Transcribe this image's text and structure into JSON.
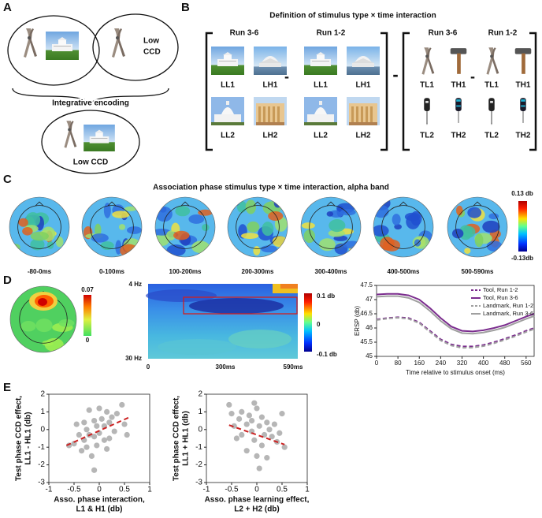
{
  "panel_labels": [
    "A",
    "B",
    "C",
    "D",
    "E"
  ],
  "panel_a": {
    "low_ccd_top": [
      "Low",
      "CCD"
    ],
    "integrative_encoding": "Integrative encoding",
    "low_ccd_bottom": "Low CCD"
  },
  "panel_b": {
    "title": "Definition of stimulus type × time interaction",
    "run_labels": [
      "Run 3-6",
      "Run 1-2",
      "Run 3-6",
      "Run 1-2"
    ],
    "landmark_labels": [
      [
        "LL1",
        "LH1",
        "LL2",
        "LH2"
      ],
      [
        "LL1",
        "LH1",
        "LL2",
        "LH2"
      ]
    ],
    "tool_labels": [
      [
        "TL1",
        "TH1",
        "TL2",
        "TH2"
      ],
      [
        "TL1",
        "TH1",
        "TL2",
        "TH2"
      ]
    ]
  },
  "panel_c": {
    "title": "Association phase stimulus type × time interaction, alpha band",
    "time_windows": [
      "-80-0ms",
      "0-100ms",
      "100-200ms",
      "200-300ms",
      "300-400ms",
      "400-500ms",
      "500-590ms"
    ],
    "colorbar_labels": [
      "0.13 db",
      "-0.13db"
    ]
  },
  "panel_d": {
    "topo_colorbar_labels": [
      "0.07",
      "0"
    ],
    "tf_freq_labels": [
      "4 Hz",
      "30 Hz"
    ],
    "tf_time_labels": [
      "0",
      "300ms",
      "590ms"
    ],
    "tf_colorbar_labels": [
      "0.1 db",
      "0",
      "-0.1 db"
    ],
    "erp_chart": {
      "type": "line",
      "x_label": "Time relative to stimulus onset (ms)",
      "y_label": "ERSP (db)",
      "x": [
        0,
        40,
        80,
        120,
        160,
        200,
        240,
        280,
        320,
        360,
        400,
        440,
        480,
        520,
        560,
        590
      ],
      "xlim": [
        0,
        590
      ],
      "xticks": [
        0,
        80,
        160,
        240,
        320,
        400,
        480,
        560
      ],
      "ylim": [
        45,
        47.5
      ],
      "yticks": [
        45,
        45.5,
        46,
        46.5,
        47,
        47.5
      ],
      "legend": "upper right",
      "series": [
        {
          "name": "Tool, Run 1-2",
          "color": "#7b2d8e",
          "dashed": true,
          "values": [
            46.3,
            46.35,
            46.38,
            46.35,
            46.2,
            45.9,
            45.6,
            45.42,
            45.35,
            45.35,
            45.4,
            45.5,
            45.62,
            45.75,
            45.9,
            46.0
          ]
        },
        {
          "name": "Tool, Run 3-6",
          "color": "#7b2d8e",
          "dashed": false,
          "values": [
            47.18,
            47.2,
            47.2,
            47.15,
            47.0,
            46.7,
            46.35,
            46.05,
            45.9,
            45.88,
            45.92,
            46.0,
            46.1,
            46.25,
            46.4,
            46.5
          ]
        },
        {
          "name": "Landmark, Run 1-2",
          "color": "#a0a0a0",
          "dashed": true,
          "values": [
            46.28,
            46.33,
            46.36,
            46.32,
            46.17,
            45.86,
            45.56,
            45.38,
            45.3,
            45.31,
            45.36,
            45.46,
            45.58,
            45.71,
            45.86,
            45.96
          ]
        },
        {
          "name": "Landmark, Run 3-6",
          "color": "#a0a0a0",
          "dashed": false,
          "values": [
            47.1,
            47.12,
            47.12,
            47.06,
            46.9,
            46.6,
            46.25,
            45.97,
            45.82,
            45.8,
            45.84,
            45.92,
            46.02,
            46.17,
            46.32,
            46.42
          ]
        }
      ]
    }
  },
  "panel_e": {
    "charts": [
      {
        "type": "scatter",
        "x_label": [
          "Asso. phase interaction,",
          "L1 & H1 (db)"
        ],
        "y_label": [
          "Test phase CCD effect,",
          "LL1 - HL1 (db)"
        ],
        "xlim": [
          -1,
          1
        ],
        "xticks": [
          -1,
          -0.5,
          0,
          0.5,
          1
        ],
        "ylim": [
          -3,
          2
        ],
        "yticks": [
          -3,
          -2,
          -1,
          0,
          1,
          2
        ],
        "color": "#a9a9a9",
        "x": [
          -0.6,
          -0.5,
          -0.45,
          -0.4,
          -0.35,
          -0.3,
          -0.3,
          -0.25,
          -0.2,
          -0.2,
          -0.15,
          -0.1,
          -0.1,
          -0.05,
          -0.05,
          0,
          0,
          0.05,
          0.1,
          0.1,
          0.15,
          0.2,
          0.2,
          0.25,
          0.3,
          0.35,
          0.45,
          0.5,
          0.55,
          -0.1,
          -0.25,
          0.15
        ],
        "y": [
          -0.9,
          -0.8,
          0.3,
          -0.3,
          -1.2,
          0.4,
          -0.6,
          0,
          -0.3,
          1.1,
          -1.5,
          0.5,
          -0.4,
          0.2,
          -0.9,
          1.2,
          -0.2,
          0.6,
          0.2,
          -0.6,
          1.0,
          0.4,
          -0.5,
          0.7,
          -0.1,
          0.9,
          1.4,
          0.3,
          -0.3,
          -2.3,
          -1.0,
          -1.1
        ],
        "fit": {
          "color": "#cc2222",
          "x": [
            -0.65,
            0.6
          ],
          "y": [
            -0.9,
            0.7
          ]
        }
      },
      {
        "type": "scatter",
        "x_label": [
          "Asso. phase learning effect,",
          "L2 + H2 (db)"
        ],
        "y_label": [
          "Test phase CCD effect,",
          "LL1 + HL1 (db)"
        ],
        "xlim": [
          -1,
          1
        ],
        "xticks": [
          -1,
          -0.5,
          0,
          0.5,
          1
        ],
        "ylim": [
          -3,
          2
        ],
        "yticks": [
          -3,
          -2,
          -1,
          0,
          1,
          2
        ],
        "color": "#a9a9a9",
        "x": [
          -0.55,
          -0.5,
          -0.45,
          -0.4,
          -0.35,
          -0.3,
          -0.3,
          -0.2,
          -0.2,
          -0.15,
          -0.1,
          -0.1,
          -0.05,
          0,
          0,
          0.05,
          0.1,
          0.1,
          0.15,
          0.2,
          0.2,
          0.25,
          0.3,
          0.35,
          0.4,
          0.45,
          0.5,
          0.55,
          0.05,
          -0.05
        ],
        "y": [
          1.4,
          0.9,
          0.2,
          -0.5,
          0.6,
          1.0,
          -0.3,
          0.3,
          -1.2,
          0.8,
          -0.1,
          0.5,
          -0.6,
          1.2,
          -1.5,
          0.2,
          0.7,
          -0.9,
          -0.3,
          0.4,
          -1.6,
          0.0,
          -0.4,
          0.3,
          -0.7,
          -0.2,
          0.9,
          -1.0,
          -2.2,
          1.5
        ],
        "fit": {
          "color": "#cc2222",
          "x": [
            -0.55,
            0.55
          ],
          "y": [
            0.25,
            -0.85
          ]
        }
      }
    ]
  }
}
